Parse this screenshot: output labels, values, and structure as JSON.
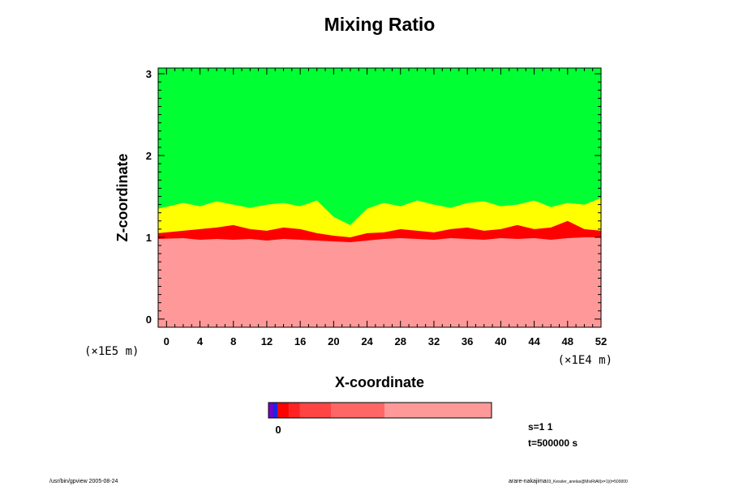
{
  "chart_data": {
    "type": "heatmap",
    "title": "Mixing Ratio",
    "xlabel": "X-coordinate",
    "ylabel": "Z-coordinate",
    "x_scale_label": "(×1E4 m)",
    "y_scale_label": "(×1E5 m)",
    "xlim": [
      -1,
      52
    ],
    "ylim": [
      -0.1,
      3.07
    ],
    "x_ticks": [
      "0",
      "4",
      "8",
      "12",
      "16",
      "20",
      "24",
      "28",
      "32",
      "36",
      "40",
      "44",
      "48",
      "52"
    ],
    "y_ticks": [
      "0",
      "1",
      "2",
      "3"
    ],
    "grid": false,
    "fields": [
      {
        "region": "below ~1",
        "color": "#ff9999"
      },
      {
        "region": "interface ~1.0-1.1",
        "color": "#ff0000"
      },
      {
        "region": "mixing layer ~1.1-1.4",
        "color": "#ffff00"
      },
      {
        "region": "above ~1.4",
        "color": "#00ff33"
      }
    ],
    "interface_profile": {
      "x": [
        -1,
        2,
        4,
        6,
        8,
        10,
        12,
        14,
        16,
        18,
        20,
        22,
        24,
        26,
        28,
        30,
        32,
        34,
        36,
        38,
        40,
        42,
        44,
        46,
        48,
        50,
        52
      ],
      "top": [
        1.35,
        1.42,
        1.38,
        1.44,
        1.4,
        1.36,
        1.4,
        1.42,
        1.38,
        1.45,
        1.25,
        1.15,
        1.35,
        1.42,
        1.38,
        1.45,
        1.4,
        1.36,
        1.42,
        1.44,
        1.38,
        1.4,
        1.45,
        1.37,
        1.42,
        1.4,
        1.48
      ],
      "red_top": [
        1.05,
        1.08,
        1.1,
        1.12,
        1.15,
        1.1,
        1.08,
        1.12,
        1.1,
        1.05,
        1.02,
        1.0,
        1.05,
        1.06,
        1.1,
        1.08,
        1.06,
        1.1,
        1.12,
        1.08,
        1.1,
        1.15,
        1.1,
        1.12,
        1.2,
        1.1,
        1.08
      ],
      "red_bottom": [
        0.98,
        0.99,
        0.97,
        0.98,
        0.97,
        0.98,
        0.96,
        0.98,
        0.97,
        0.96,
        0.95,
        0.94,
        0.96,
        0.98,
        0.99,
        0.98,
        0.97,
        0.99,
        0.98,
        0.97,
        0.99,
        0.98,
        0.99,
        0.97,
        0.99,
        1.0,
        1.0
      ]
    },
    "colorbar": {
      "label": "0",
      "segments": [
        {
          "color": "#7700cc",
          "width": 2
        },
        {
          "color": "#2222dd",
          "width": 2
        },
        {
          "color": "#ff0000",
          "width": 5
        },
        {
          "color": "#ff2222",
          "width": 5
        },
        {
          "color": "#ff4444",
          "width": 14
        },
        {
          "color": "#ff6666",
          "width": 24
        },
        {
          "color": "#ff9999",
          "width": 48
        }
      ]
    }
  },
  "info": {
    "step": "s=1 1",
    "time": "t=500000 s"
  },
  "footer": {
    "left": "/usr/bin/gpview 2005-08-24",
    "right_main": "arare-nakajima",
    "right_small": "03_Kessler_anelas@MixRtAll(x=1)(t=500000"
  }
}
